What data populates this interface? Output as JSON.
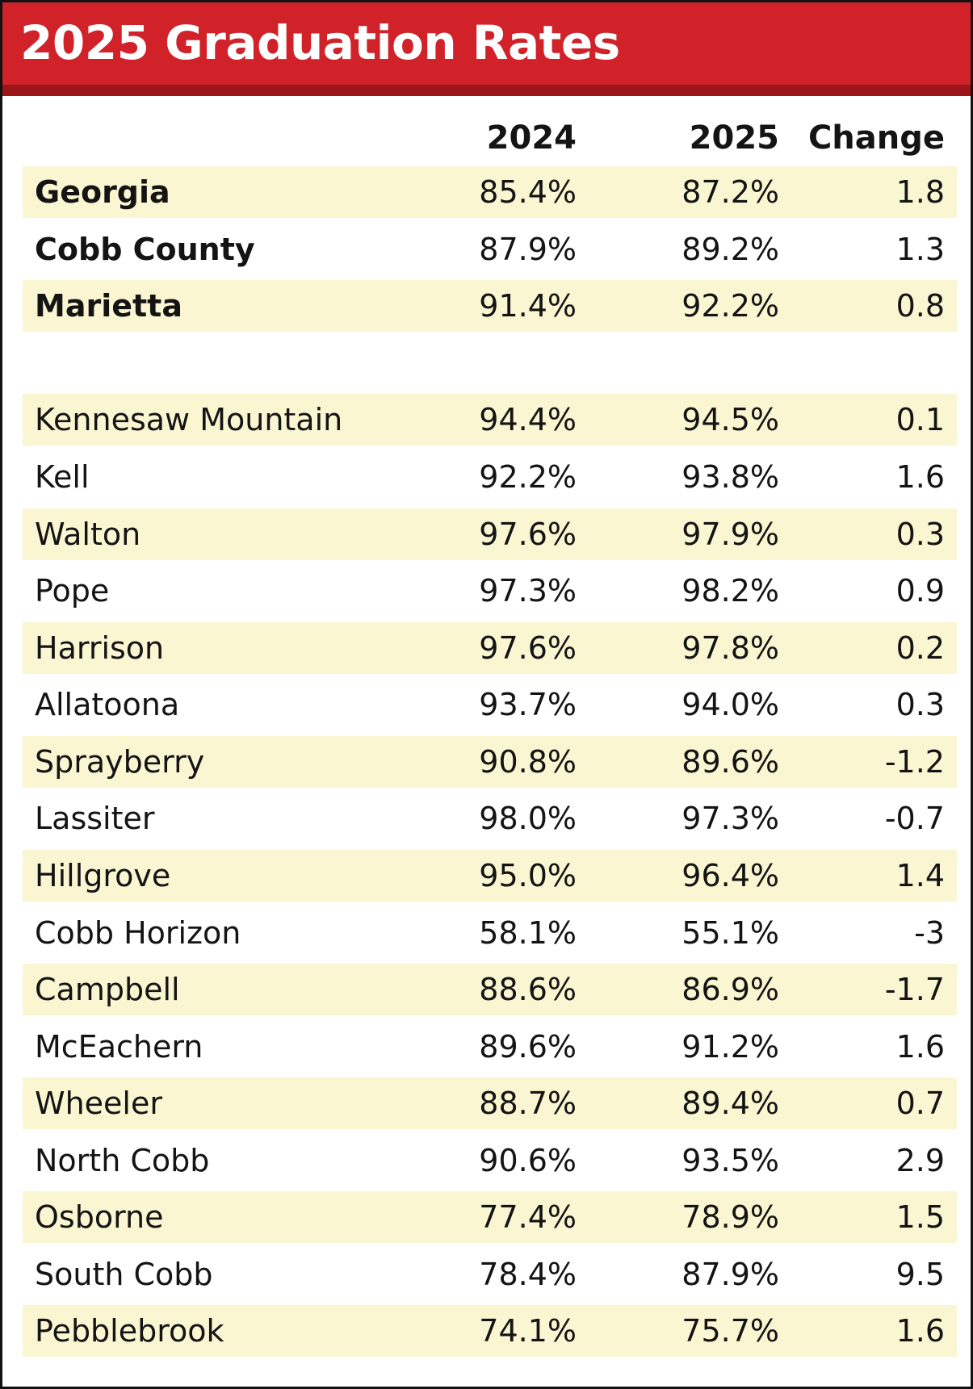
{
  "title": "2025 Graduation Rates",
  "columns": {
    "col_2024": "2024",
    "col_2025": "2025",
    "change": "Change"
  },
  "colors": {
    "title_bar": "#d1222a",
    "title_bar_shadow": "#9b1519",
    "row_shade": "#fbf6d2"
  },
  "summary_rows": [
    {
      "name": "Georgia",
      "y2024": "85.4%",
      "y2025": "87.2%",
      "change": "1.8"
    },
    {
      "name": "Cobb County",
      "y2024": "87.9%",
      "y2025": "89.2%",
      "change": "1.3"
    },
    {
      "name": "Marietta",
      "y2024": "91.4%",
      "y2025": "92.2%",
      "change": "0.8"
    }
  ],
  "school_rows": [
    {
      "name": "Kennesaw Mountain",
      "y2024": "94.4%",
      "y2025": "94.5%",
      "change": "0.1"
    },
    {
      "name": "Kell",
      "y2024": "92.2%",
      "y2025": "93.8%",
      "change": "1.6"
    },
    {
      "name": "Walton",
      "y2024": "97.6%",
      "y2025": "97.9%",
      "change": "0.3"
    },
    {
      "name": "Pope",
      "y2024": "97.3%",
      "y2025": "98.2%",
      "change": "0.9"
    },
    {
      "name": "Harrison",
      "y2024": "97.6%",
      "y2025": "97.8%",
      "change": "0.2"
    },
    {
      "name": "Allatoona",
      "y2024": "93.7%",
      "y2025": "94.0%",
      "change": "0.3"
    },
    {
      "name": "Sprayberry",
      "y2024": "90.8%",
      "y2025": "89.6%",
      "change": "-1.2"
    },
    {
      "name": "Lassiter",
      "y2024": "98.0%",
      "y2025": "97.3%",
      "change": "-0.7"
    },
    {
      "name": "Hillgrove",
      "y2024": "95.0%",
      "y2025": "96.4%",
      "change": "1.4"
    },
    {
      "name": "Cobb Horizon",
      "y2024": "58.1%",
      "y2025": "55.1%",
      "change": "-3"
    },
    {
      "name": "Campbell",
      "y2024": "88.6%",
      "y2025": "86.9%",
      "change": "-1.7"
    },
    {
      "name": "McEachern",
      "y2024": "89.6%",
      "y2025": "91.2%",
      "change": "1.6"
    },
    {
      "name": "Wheeler",
      "y2024": "88.7%",
      "y2025": "89.4%",
      "change": "0.7"
    },
    {
      "name": "North Cobb",
      "y2024": "90.6%",
      "y2025": "93.5%",
      "change": "2.9"
    },
    {
      "name": "Osborne",
      "y2024": "77.4%",
      "y2025": "78.9%",
      "change": "1.5"
    },
    {
      "name": "South Cobb",
      "y2024": "78.4%",
      "y2025": "87.9%",
      "change": "9.5"
    },
    {
      "name": "Pebblebrook",
      "y2024": "74.1%",
      "y2025": "75.7%",
      "change": "1.6"
    }
  ]
}
